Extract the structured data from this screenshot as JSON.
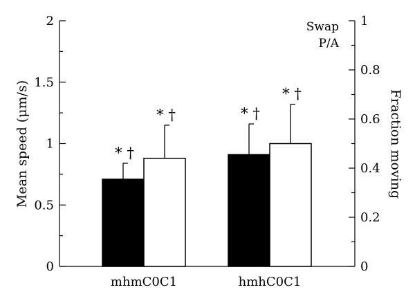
{
  "chart_data": {
    "type": "bar",
    "categories": [
      "mhmC0C1",
      "hmhC0C1"
    ],
    "series": [
      {
        "values": [
          0.71,
          0.91
        ],
        "errors": [
          0.13,
          0.25
        ],
        "fill": "#000000"
      },
      {
        "values": [
          0.88,
          1.0
        ],
        "errors": [
          0.27,
          0.32
        ],
        "fill": "#ffffff"
      }
    ],
    "annotations": [
      [
        "* †",
        "* †"
      ],
      [
        "* †",
        "* †"
      ]
    ],
    "ylabel_left": "Mean speed (μm/s)",
    "ylabel_right": "Fraction moving",
    "ylim_left": [
      0,
      2
    ],
    "ylim_right": [
      0,
      1
    ],
    "yticks_left": [
      "0",
      "0.5",
      "1",
      "1.5",
      "2"
    ],
    "yticks_right": [
      "0",
      "0.2",
      "0.4",
      "0.6",
      "0.8",
      "1"
    ],
    "legend_lines": [
      "Swap",
      "P/A"
    ],
    "legend_position": "top-right",
    "grid": false
  }
}
